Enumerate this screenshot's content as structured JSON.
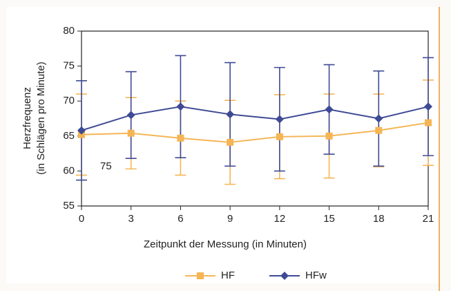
{
  "chart_data": {
    "type": "line",
    "x_label": "Zeitpunkt der Messung (in Minuten)",
    "y_label": [
      "Herzfrequenz",
      "(in Schlägen pro Minute)"
    ],
    "annotation": "75",
    "x": [
      0,
      3,
      6,
      9,
      12,
      15,
      18,
      21
    ],
    "series": [
      {
        "name": "HF",
        "color": "#f5b555",
        "marker": "square",
        "values": [
          65.2,
          65.4,
          64.7,
          64.1,
          64.9,
          65.0,
          65.8,
          66.9
        ],
        "errors": [
          5.8,
          5.1,
          5.3,
          6.0,
          6.0,
          6.0,
          5.2,
          6.1
        ]
      },
      {
        "name": "HFw",
        "color": "#3f4a94",
        "marker": "diamond",
        "values": [
          65.8,
          68.0,
          69.2,
          68.1,
          67.4,
          68.8,
          67.5,
          69.2
        ],
        "errors": [
          7.1,
          6.2,
          7.3,
          7.4,
          7.4,
          6.4,
          6.8,
          7.0
        ]
      }
    ],
    "xlim": [
      0,
      21
    ],
    "xticks": [
      0,
      3,
      6,
      9,
      12,
      15,
      18,
      21
    ],
    "ylim": [
      55,
      80
    ],
    "yticks": [
      55,
      60,
      65,
      70,
      75,
      80
    ],
    "legend": "bottom"
  }
}
